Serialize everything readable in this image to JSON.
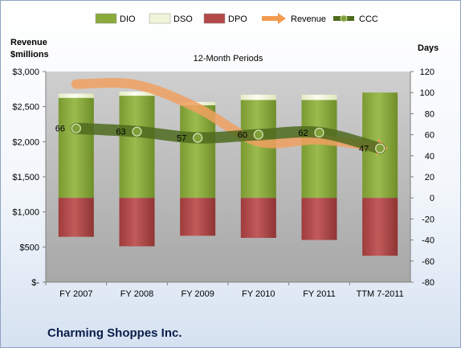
{
  "chart_data": {
    "type": "bar",
    "title": "12-Month Periods",
    "company": "Charming Shoppes Inc.",
    "left_axis_title": [
      "Revenue",
      "$millions"
    ],
    "right_axis_title": "Days",
    "categories": [
      "FY 2007",
      "FY 2008",
      "FY 2009",
      "FY 2010",
      "FY 2011",
      "TTM 7-2011"
    ],
    "left_axis": {
      "min": 0,
      "max": 3000,
      "step": 500,
      "tick_labels": [
        "$-",
        "$500",
        "$1,000",
        "$1,500",
        "$2,000",
        "$2,500",
        "$3,000"
      ]
    },
    "right_axis": {
      "min": -80,
      "max": 120,
      "step": 20,
      "tick_labels": [
        "-80",
        "-60",
        "-40",
        "-20",
        "0",
        "20",
        "40",
        "60",
        "80",
        "100",
        "120"
      ]
    },
    "legend": {
      "position": "top",
      "entries": [
        {
          "name": "DIO",
          "color": "#8aaa3c"
        },
        {
          "name": "DSO",
          "color": "#f0f5d8"
        },
        {
          "name": "DPO",
          "color": "#b34848"
        },
        {
          "name": "Revenue",
          "color": "#f29b50"
        },
        {
          "name": "CCC",
          "color": "#4e6b1e"
        }
      ]
    },
    "series": [
      {
        "name": "DIO",
        "axis": "right",
        "values": [
          95,
          97,
          88,
          93,
          93,
          100
        ]
      },
      {
        "name": "DSO",
        "axis": "right",
        "values": [
          4,
          4,
          3,
          5,
          5,
          0
        ]
      },
      {
        "name": "DPO",
        "axis": "right",
        "values": [
          -37,
          -46,
          -36,
          -38,
          -40,
          -55
        ]
      },
      {
        "name": "Revenue",
        "axis": "left",
        "values": [
          2820,
          2810,
          2480,
          2000,
          2030,
          1920
        ]
      },
      {
        "name": "CCC",
        "axis": "right",
        "values": [
          66,
          63,
          57,
          60,
          62,
          47
        ],
        "data_labels": [
          "66",
          "63",
          "57",
          "60",
          "62",
          "47"
        ]
      }
    ],
    "grid": false,
    "plot_background": "#c0c0c0"
  }
}
